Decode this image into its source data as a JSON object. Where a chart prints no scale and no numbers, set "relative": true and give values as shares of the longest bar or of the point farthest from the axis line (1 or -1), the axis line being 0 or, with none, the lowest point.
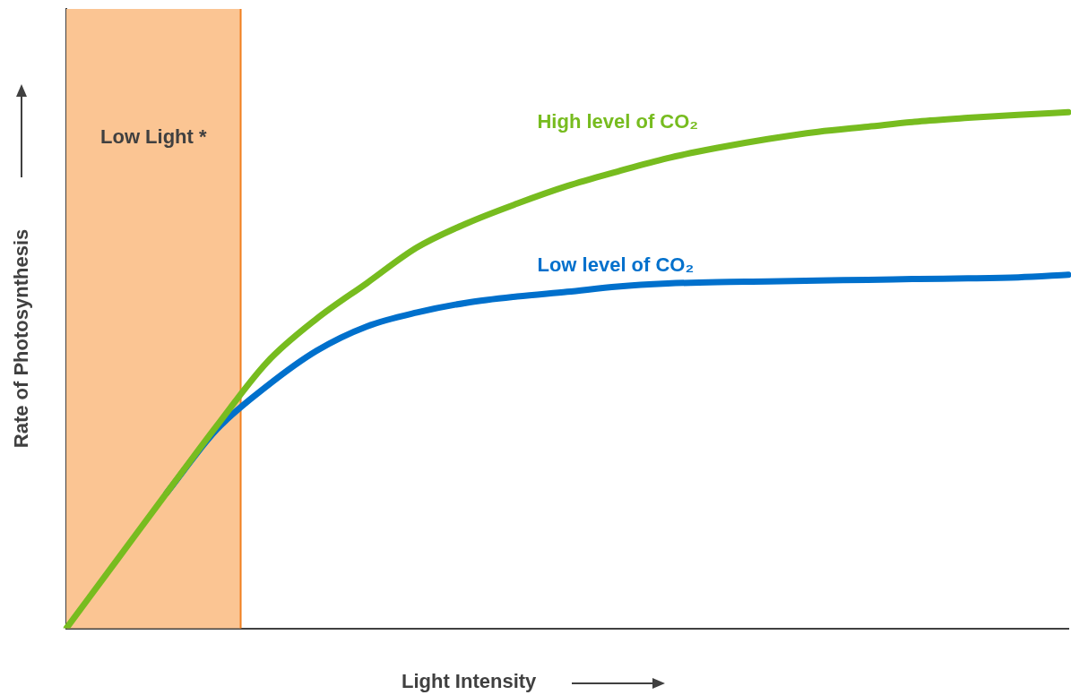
{
  "chart_data": {
    "type": "line",
    "relative": true,
    "xlabel": "Light Intensity",
    "ylabel": "Rate of Photosynthesis",
    "categories": [
      null,
      null,
      null,
      null,
      null,
      null,
      null,
      null,
      null,
      null,
      null,
      null,
      null,
      null,
      null,
      null,
      null,
      null,
      null,
      null,
      null
    ],
    "series": [
      {
        "name": "High level of CO₂",
        "color": "#77bc1f",
        "values": [
          0,
          0.131,
          0.262,
          0.392,
          0.515,
          0.6,
          0.669,
          0.738,
          0.785,
          0.823,
          0.857,
          0.885,
          0.911,
          0.931,
          0.948,
          0.962,
          0.972,
          0.982,
          0.989,
          0.995,
          1
        ]
      },
      {
        "name": "Low level of CO₂",
        "color": "#0070cc",
        "values": [
          null,
          null,
          0.262,
          0.385,
          0.469,
          0.538,
          0.585,
          0.612,
          0.631,
          0.643,
          0.652,
          0.662,
          0.668,
          0.671,
          0.672,
          0.674,
          0.675,
          0.677,
          0.678,
          0.68,
          0.685
        ]
      }
    ],
    "annotations": [
      "Low Light *"
    ],
    "grid": false,
    "legend": false,
    "marker": "none",
    "line_style": "solid"
  }
}
